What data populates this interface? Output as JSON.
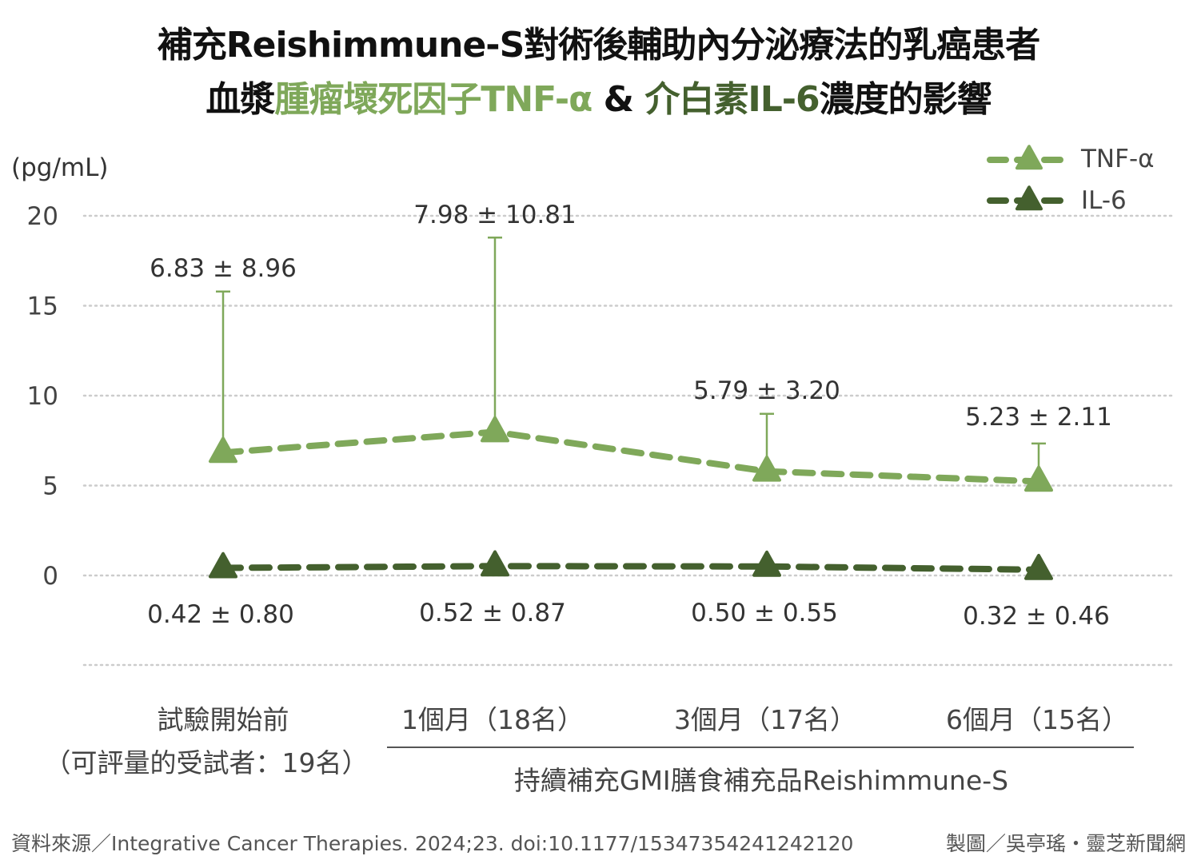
{
  "title": {
    "line1": "補充Reishimmune-S對術後輔助內分泌療法的乳癌患者",
    "line2_prefix": "血漿",
    "line2_tnf": "腫瘤壞死因子TNF-α",
    "line2_amp": " & ",
    "line2_il6": "介白素IL-6",
    "line2_suffix": "濃度的影響"
  },
  "unit_label": "(pg/mL)",
  "x_labels": {
    "baseline_line1": "試驗開始前",
    "baseline_line2": "（可評量的受試者：19名）",
    "month1": "1個月（18名）",
    "month3": "3個月（17名）",
    "month6": "6個月（15名）",
    "group_label": "持續補充GMI膳食補充品Reishimmune-S"
  },
  "footer": {
    "source": "資料來源／Integrative Cancer Therapies. 2024;23. doi:10.1177/15347354241242120",
    "credit": "製圖／吳亭瑤・靈芝新聞網"
  },
  "colors": {
    "tnf": "#7fa85a",
    "il6": "#44602e",
    "grid": "#cccccc",
    "error_bar": "#7fa85a"
  },
  "chart_data": {
    "type": "line",
    "title": "補充Reishimmune-S對術後輔助內分泌療法的乳癌患者 血漿腫瘤壞死因子TNF-α & 介白素IL-6濃度的影響",
    "xlabel": "",
    "ylabel": "(pg/mL)",
    "ylim": [
      0,
      20
    ],
    "yticks": [
      0,
      5,
      10,
      15,
      20
    ],
    "grid": true,
    "legend_position": "top-right",
    "categories": [
      "試驗開始前",
      "1個月",
      "3個月",
      "6個月"
    ],
    "series": [
      {
        "name": "TNF-α",
        "marker": "triangle",
        "line_style": "dashed",
        "values": [
          6.83,
          7.98,
          5.79,
          5.23
        ],
        "errors": [
          8.96,
          10.81,
          3.2,
          2.11
        ],
        "labels": [
          "6.83 ± 8.96",
          "7.98 ± 10.81",
          "5.79 ± 3.20",
          "5.23 ± 2.11"
        ]
      },
      {
        "name": "IL-6",
        "marker": "triangle",
        "line_style": "dashed",
        "values": [
          0.42,
          0.52,
          0.5,
          0.32
        ],
        "errors": [
          0.8,
          0.87,
          0.55,
          0.46
        ],
        "labels": [
          "0.42 ± 0.80",
          "0.52 ± 0.87",
          "0.50 ± 0.55",
          "0.32 ± 0.46"
        ]
      }
    ]
  }
}
